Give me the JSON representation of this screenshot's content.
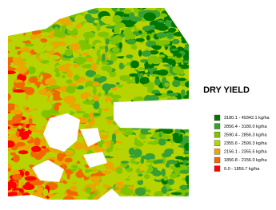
{
  "legend": {
    "title": "DRY YIELD",
    "items": [
      {
        "label": "3180.1 - 49342.1 kg/ha",
        "color": "#007800"
      },
      {
        "label": "2856.4 - 3180.0 kg/ha",
        "color": "#38a030"
      },
      {
        "label": "2590.4 - 2856.3 kg/ha",
        "color": "#80c400"
      },
      {
        "label": "2355.6 - 2590.3 kg/ha",
        "color": "#b8d400"
      },
      {
        "label": "2156.1 - 2355.5 kg/ha",
        "color": "#e8a800"
      },
      {
        "label": "1856.8 - 2156.0 kg/ha",
        "color": "#f06800"
      },
      {
        "label": "0.0 - 1856.7 kg/ha",
        "color": "#ff0000"
      }
    ]
  }
}
